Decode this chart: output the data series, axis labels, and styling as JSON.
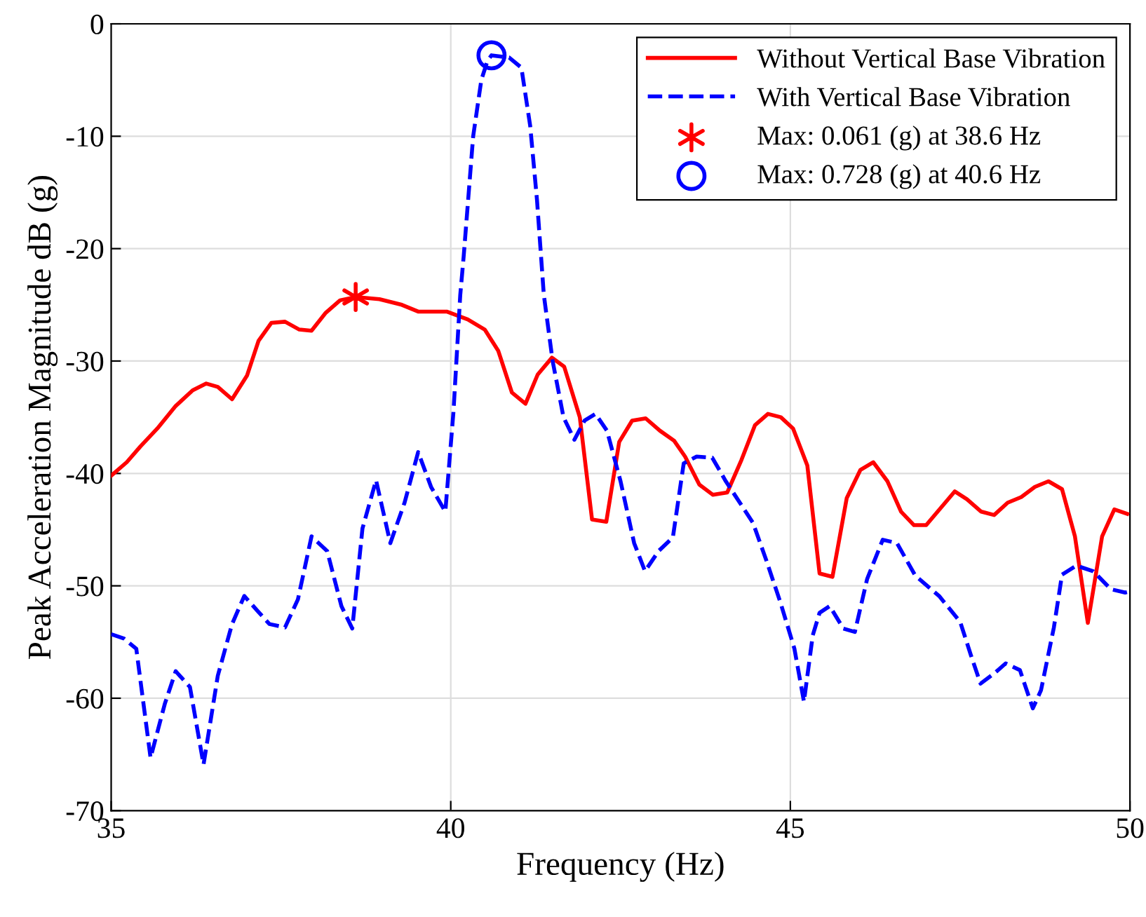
{
  "chart_data": {
    "type": "line",
    "xlabel": "Frequency (Hz)",
    "ylabel": "Peak Acceleration Magnitude dB (g)",
    "xlim": [
      35,
      50
    ],
    "ylim": [
      -70,
      0
    ],
    "xticks": [
      35,
      40,
      45,
      50
    ],
    "yticks": [
      -70,
      -60,
      -50,
      -40,
      -30,
      -20,
      -10,
      0
    ],
    "grid": true,
    "legend": "top right",
    "series": [
      {
        "name": "Without Vertical Base Vibration",
        "color": "#ff0000",
        "line_style": "solid",
        "x": [
          35,
          35.23,
          35.43,
          35.68,
          35.95,
          36.2,
          36.4,
          36.57,
          36.78,
          37.0,
          37.17,
          37.36,
          37.56,
          37.77,
          37.95,
          38.16,
          38.37,
          38.6,
          38.95,
          39.28,
          39.52,
          39.94,
          40.25,
          40.5,
          40.7,
          40.9,
          41.1,
          41.28,
          41.49,
          41.67,
          41.9,
          42.08,
          42.29,
          42.48,
          42.67,
          42.87,
          43.08,
          43.29,
          43.45,
          43.66,
          43.86,
          44.07,
          44.28,
          44.48,
          44.67,
          44.86,
          45.04,
          45.25,
          45.43,
          45.62,
          45.83,
          46.03,
          46.22,
          46.43,
          46.63,
          46.82,
          47.0,
          47.21,
          47.42,
          47.6,
          47.81,
          48.0,
          48.2,
          48.4,
          48.6,
          48.8,
          49.0,
          49.19,
          49.38,
          49.59,
          49.77,
          49.96
        ],
        "values": [
          -40.2,
          -39,
          -37.6,
          -36,
          -34,
          -32.6,
          -32,
          -32.3,
          -33.4,
          -31.3,
          -28.2,
          -26.6,
          -26.5,
          -27.2,
          -27.3,
          -25.7,
          -24.6,
          -24.3,
          -24.5,
          -25,
          -25.6,
          -25.6,
          -26.3,
          -27.2,
          -29.1,
          -32.8,
          -33.8,
          -31.2,
          -29.7,
          -30.5,
          -35,
          -44.1,
          -44.3,
          -37.2,
          -35.3,
          -35.1,
          -36.2,
          -37.1,
          -38.5,
          -41,
          -41.9,
          -41.7,
          -38.8,
          -35.7,
          -34.7,
          -35,
          -36,
          -39.3,
          -48.9,
          -49.2,
          -42.2,
          -39.7,
          -39,
          -40.7,
          -43.4,
          -44.6,
          -44.6,
          -43.1,
          -41.6,
          -42.3,
          -43.4,
          -43.7,
          -42.6,
          -42.1,
          -41.2,
          -40.7,
          -41.4,
          -45.6,
          -53.3,
          -45.6,
          -43.2,
          -43.6
        ]
      },
      {
        "name": "With Vertical Base Vibration",
        "color": "#0000ff",
        "line_style": "dashed",
        "x": [
          35,
          35.19,
          35.37,
          35.58,
          35.79,
          35.95,
          36.16,
          36.36,
          36.57,
          36.78,
          36.96,
          37.15,
          37.33,
          37.56,
          37.75,
          37.95,
          38.18,
          38.39,
          38.55,
          38.7,
          38.9,
          39.11,
          39.32,
          39.52,
          39.71,
          39.92,
          40.04,
          40.14,
          40.19,
          40.33,
          40.45,
          40.54,
          40.6,
          40.86,
          41.04,
          41.17,
          41.27,
          41.37,
          41.5,
          41.66,
          41.82,
          41.97,
          42.13,
          42.3,
          42.5,
          42.7,
          42.86,
          43.06,
          43.27,
          43.43,
          43.62,
          43.85,
          44.05,
          44.45,
          44.65,
          44.86,
          45.06,
          45.2,
          45.33,
          45.43,
          45.58,
          45.78,
          45.95,
          46.13,
          46.36,
          46.57,
          46.84,
          47.19,
          47.5,
          47.66,
          47.8,
          48.0,
          48.17,
          48.38,
          48.57,
          48.69,
          48.88,
          49.0,
          49.21,
          49.46,
          49.72,
          49.93,
          50
        ],
        "values": [
          -54.3,
          -54.7,
          -55.6,
          -65.3,
          -60.5,
          -57.6,
          -59,
          -65.9,
          -58,
          -53.4,
          -50.9,
          -52.2,
          -53.4,
          -53.7,
          -51.2,
          -45.6,
          -46.9,
          -51.8,
          -53.8,
          -44.9,
          -40.6,
          -46.2,
          -42.6,
          -38.1,
          -41.2,
          -43.4,
          -34.5,
          -24.1,
          -20.7,
          -10,
          -5,
          -3.3,
          -2.8,
          -3,
          -3.9,
          -9.1,
          -15.7,
          -24.1,
          -30,
          -35,
          -37,
          -35.3,
          -34.7,
          -36.2,
          -40.7,
          -46.2,
          -48.7,
          -46.9,
          -45.7,
          -39.1,
          -38.5,
          -38.6,
          -40.7,
          -44.4,
          -47.8,
          -51.6,
          -55.6,
          -60.3,
          -54.4,
          -52.4,
          -51.8,
          -53.8,
          -54.1,
          -49.4,
          -45.9,
          -46.2,
          -49.1,
          -50.9,
          -53.2,
          -56.2,
          -58.7,
          -57.8,
          -56.9,
          -57.5,
          -60.9,
          -59.3,
          -53.7,
          -49,
          -48.2,
          -48.7,
          -50.3,
          -50.6,
          -50.5
        ]
      },
      {
        "name": "Max: 0.061 (g) at 38.6 Hz",
        "type": "scatter",
        "color": "#ff0000",
        "marker": "cross",
        "x": [
          38.6
        ],
        "values": [
          -24.3
        ]
      },
      {
        "name": "Max: 0.728 (g) at 40.6 Hz",
        "type": "scatter",
        "color": "#0000ff",
        "marker": "circle",
        "x": [
          40.6
        ],
        "values": [
          -2.8
        ]
      }
    ]
  }
}
